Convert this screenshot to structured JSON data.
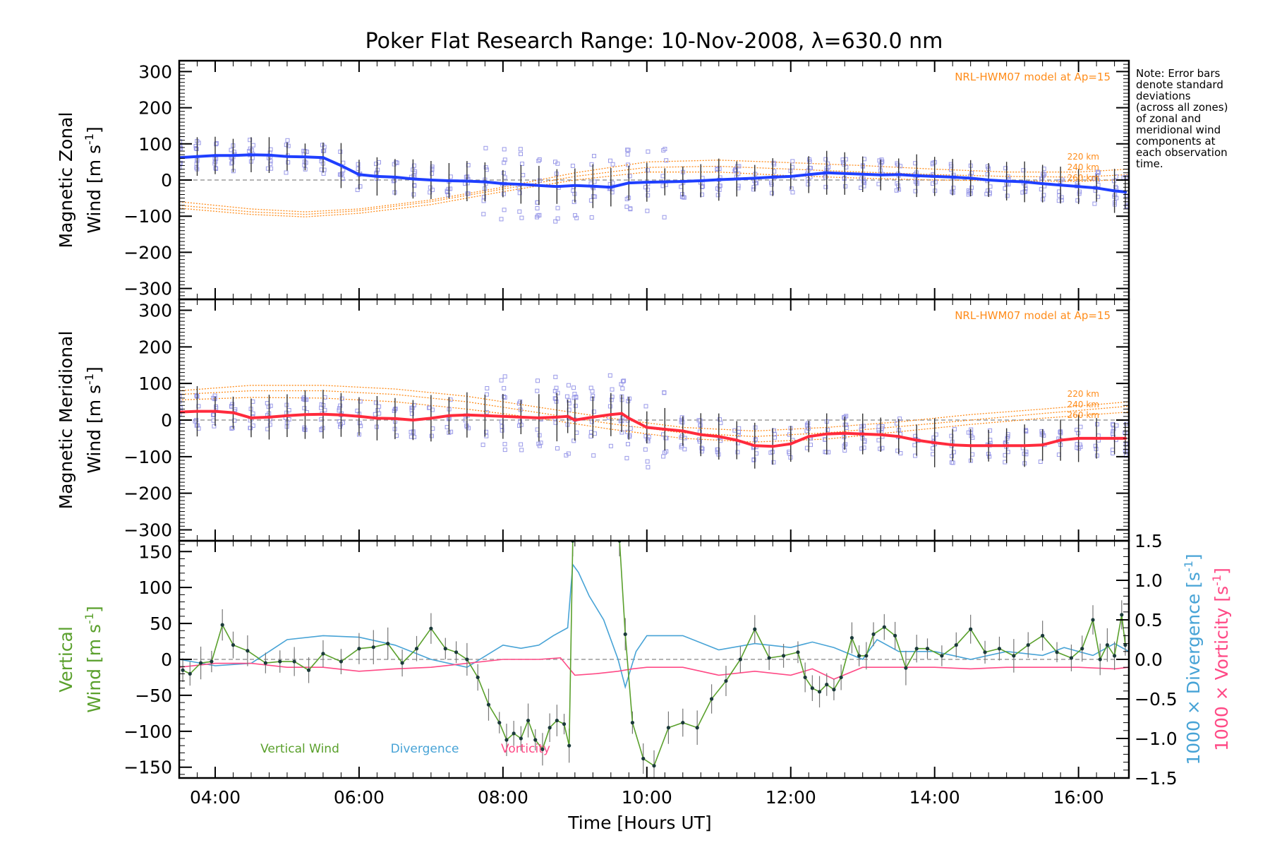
{
  "title": "Poker Flat Research Range: 10-Nov-2008, λ=630.0 nm",
  "note_lines": [
    "Note: Error bars",
    "denote standard",
    "deviations",
    "(across all zones)",
    "of zonal and",
    "meridional wind",
    "components at",
    "each observation",
    "time."
  ],
  "colors": {
    "zonal": "#1f3fff",
    "meridional": "#ff2a3c",
    "vertical": "#5aa02c",
    "divergence": "#47a3d6",
    "vorticity": "#ff4a86",
    "model": "#ff8c1a",
    "samples": "#9a9ae8",
    "errorbar": "#333333"
  },
  "chart_data": [
    {
      "type": "line",
      "panel": "zonal",
      "ylabel": "Magnetic Zonal",
      "ylabel2": "Wind [m s",
      "ylabel_sup": "-1",
      "ylabel_close": "]",
      "ylim": [
        -330,
        330
      ],
      "yticks": [
        300,
        200,
        100,
        0,
        -100,
        -200,
        -300
      ],
      "ytick_labels": [
        "300",
        "200",
        "100",
        "0",
        "−100",
        "−200",
        "−300"
      ],
      "xlim": [
        3.5,
        16.7
      ],
      "model_label": "NRL-HWM07 model at Ap=15",
      "model_altitude_labels": [
        "220 km",
        "240 km",
        "260 km"
      ],
      "series": [
        {
          "x": [
            3.5,
            3.75,
            4.0,
            4.25,
            4.5,
            4.75,
            5.0,
            5.25,
            5.5,
            5.75,
            6.0,
            6.25,
            6.5,
            6.75,
            7.0,
            7.25,
            7.5,
            7.75,
            8.0,
            8.25,
            8.5,
            8.75,
            9.0,
            9.25,
            9.5,
            9.75,
            10.0,
            10.25,
            10.5,
            10.75,
            11.0,
            11.25,
            11.5,
            11.75,
            12.0,
            12.25,
            12.5,
            12.75,
            13.0,
            13.25,
            13.5,
            13.75,
            14.0,
            14.25,
            14.5,
            14.75,
            15.0,
            15.25,
            15.5,
            15.75,
            16.0,
            16.25,
            16.5,
            16.65
          ],
          "y": [
            62,
            65,
            68,
            68,
            70,
            69,
            65,
            64,
            62,
            40,
            15,
            10,
            8,
            3,
            0,
            -2,
            -3,
            -5,
            -10,
            -12,
            -15,
            -18,
            -15,
            -17,
            -20,
            -8,
            -6,
            -5,
            -4,
            -2,
            1,
            3,
            5,
            8,
            10,
            15,
            20,
            18,
            16,
            14,
            15,
            12,
            10,
            8,
            5,
            0,
            -3,
            -5,
            -10,
            -14,
            -18,
            -22,
            -30,
            -33
          ]
        }
      ],
      "error_sd": 45,
      "model_220": [
        [
          3.5,
          -60
        ],
        [
          4.5,
          -80
        ],
        [
          5.25,
          -88
        ],
        [
          6.0,
          -80
        ],
        [
          7.0,
          -55
        ],
        [
          8.0,
          -20
        ],
        [
          9.0,
          20
        ],
        [
          10.0,
          50
        ],
        [
          11.0,
          55
        ],
        [
          12.0,
          48
        ],
        [
          13.0,
          40
        ],
        [
          14.0,
          30
        ],
        [
          15.0,
          22
        ],
        [
          16.0,
          22
        ],
        [
          16.7,
          30
        ]
      ],
      "model_240": [
        [
          3.5,
          -70
        ],
        [
          4.5,
          -88
        ],
        [
          5.25,
          -95
        ],
        [
          6.0,
          -85
        ],
        [
          7.0,
          -60
        ],
        [
          8.0,
          -25
        ],
        [
          9.0,
          10
        ],
        [
          10.0,
          35
        ],
        [
          11.0,
          38
        ],
        [
          12.0,
          30
        ],
        [
          13.0,
          22
        ],
        [
          14.0,
          15
        ],
        [
          15.0,
          10
        ],
        [
          16.0,
          8
        ],
        [
          16.7,
          15
        ]
      ],
      "model_260": [
        [
          3.5,
          -78
        ],
        [
          4.5,
          -95
        ],
        [
          5.25,
          -102
        ],
        [
          6.0,
          -92
        ],
        [
          7.0,
          -68
        ],
        [
          8.0,
          -32
        ],
        [
          9.0,
          0
        ],
        [
          10.0,
          22
        ],
        [
          11.0,
          22
        ],
        [
          12.0,
          12
        ],
        [
          13.0,
          5
        ],
        [
          14.0,
          0
        ],
        [
          15.0,
          -2
        ],
        [
          16.0,
          -4
        ],
        [
          16.7,
          2
        ]
      ]
    },
    {
      "type": "line",
      "panel": "meridional",
      "ylabel": "Magnetic Meridional",
      "ylabel2": "Wind [m s",
      "ylabel_sup": "-1",
      "ylabel_close": "]",
      "ylim": [
        -330,
        330
      ],
      "yticks": [
        300,
        200,
        100,
        0,
        -100,
        -200,
        -300
      ],
      "ytick_labels": [
        "300",
        "200",
        "100",
        "0",
        "−100",
        "−200",
        "−300"
      ],
      "xlim": [
        3.5,
        16.7
      ],
      "model_label": "NRL-HWM07 model at Ap=15",
      "model_altitude_labels": [
        "220 km",
        "240 km",
        "260 km"
      ],
      "series": [
        {
          "x": [
            3.5,
            3.75,
            4.0,
            4.25,
            4.5,
            4.75,
            5.0,
            5.25,
            5.5,
            5.75,
            6.0,
            6.25,
            6.5,
            6.75,
            7.0,
            7.25,
            7.5,
            7.75,
            8.0,
            8.25,
            8.5,
            8.75,
            8.9,
            9.0,
            9.25,
            9.5,
            9.65,
            9.75,
            10.0,
            10.25,
            10.5,
            10.75,
            11.0,
            11.25,
            11.5,
            11.75,
            12.0,
            12.25,
            12.5,
            12.75,
            13.0,
            13.25,
            13.5,
            13.75,
            14.0,
            14.25,
            14.5,
            14.75,
            15.0,
            15.25,
            15.5,
            15.75,
            16.0,
            16.25,
            16.5,
            16.65
          ],
          "y": [
            22,
            24,
            24,
            20,
            6,
            8,
            12,
            15,
            16,
            14,
            10,
            5,
            4,
            0,
            5,
            12,
            14,
            12,
            10,
            8,
            6,
            8,
            10,
            0,
            8,
            15,
            18,
            5,
            -20,
            -25,
            -30,
            -40,
            -45,
            -55,
            -70,
            -72,
            -65,
            -45,
            -38,
            -36,
            -38,
            -40,
            -45,
            -55,
            -62,
            -68,
            -70,
            -70,
            -70,
            -70,
            -68,
            -55,
            -50,
            -50,
            -50,
            -50
          ]
        }
      ],
      "error_sd": 50,
      "model_220": [
        [
          3.5,
          80
        ],
        [
          4.5,
          95
        ],
        [
          5.5,
          95
        ],
        [
          6.5,
          85
        ],
        [
          7.5,
          65
        ],
        [
          8.5,
          35
        ],
        [
          9.5,
          5
        ],
        [
          10.5,
          -20
        ],
        [
          11.5,
          -30
        ],
        [
          12.5,
          -20
        ],
        [
          13.5,
          -5
        ],
        [
          14.5,
          15
        ],
        [
          15.5,
          30
        ],
        [
          16.7,
          50
        ]
      ],
      "model_240": [
        [
          3.5,
          70
        ],
        [
          4.5,
          80
        ],
        [
          5.5,
          80
        ],
        [
          6.5,
          70
        ],
        [
          7.5,
          50
        ],
        [
          8.5,
          20
        ],
        [
          9.5,
          -10
        ],
        [
          10.5,
          -35
        ],
        [
          11.5,
          -45
        ],
        [
          12.5,
          -35
        ],
        [
          13.5,
          -18
        ],
        [
          14.5,
          0
        ],
        [
          15.5,
          18
        ],
        [
          16.7,
          38
        ]
      ],
      "model_260": [
        [
          3.5,
          55
        ],
        [
          4.5,
          62
        ],
        [
          5.5,
          60
        ],
        [
          6.5,
          50
        ],
        [
          7.5,
          30
        ],
        [
          8.5,
          5
        ],
        [
          9.5,
          -25
        ],
        [
          10.5,
          -50
        ],
        [
          11.5,
          -60
        ],
        [
          12.5,
          -52
        ],
        [
          13.5,
          -32
        ],
        [
          14.5,
          -12
        ],
        [
          15.5,
          5
        ],
        [
          16.7,
          22
        ]
      ]
    },
    {
      "type": "line",
      "panel": "vertical",
      "ylabel": "Vertical",
      "ylabel2": "Wind [m s",
      "ylabel_sup": "-1",
      "ylabel_close": "]",
      "ylim": [
        -165,
        165
      ],
      "yticks": [
        150,
        100,
        50,
        0,
        -50,
        -100,
        -150
      ],
      "ytick_labels": [
        "150",
        "100",
        "50",
        "0",
        "−50",
        "−100",
        "−150"
      ],
      "y2lim": [
        -1.5,
        1.5
      ],
      "y2ticks": [
        1.5,
        1.0,
        0.5,
        0.0,
        -0.5,
        -1.0,
        -1.5
      ],
      "y2tick_labels": [
        "1.5",
        "1.0",
        "0.5",
        "0.0",
        "−0.5",
        "−1.0",
        "−1.5"
      ],
      "y2label_div": "1000 × Divergence [s",
      "y2label_vor": "1000 × Vorticity [s",
      "xlim": [
        3.5,
        16.7
      ],
      "xticks": [
        4,
        6,
        8,
        10,
        12,
        14,
        16
      ],
      "xtick_labels": [
        "04:00",
        "06:00",
        "08:00",
        "10:00",
        "12:00",
        "14:00",
        "16:00"
      ],
      "xlabel": "Time [Hours UT]",
      "legend": [
        "Vertical Wind",
        "Divergence",
        "Vorticity"
      ],
      "series": [
        {
          "name": "Vertical Wind",
          "x": [
            3.55,
            3.65,
            3.8,
            3.95,
            4.1,
            4.25,
            4.45,
            4.7,
            4.9,
            5.1,
            5.3,
            5.5,
            5.75,
            6.0,
            6.2,
            6.4,
            6.6,
            6.8,
            7.0,
            7.2,
            7.35,
            7.5,
            7.65,
            7.8,
            7.95,
            8.05,
            8.15,
            8.25,
            8.35,
            8.45,
            8.55,
            8.65,
            8.75,
            8.85,
            8.92,
            8.97,
            9.62,
            9.7,
            9.8,
            9.95,
            10.1,
            10.3,
            10.5,
            10.7,
            10.9,
            11.1,
            11.3,
            11.5,
            11.7,
            11.9,
            12.1,
            12.2,
            12.3,
            12.4,
            12.5,
            12.6,
            12.7,
            12.85,
            12.95,
            13.05,
            13.15,
            13.3,
            13.45,
            13.6,
            13.75,
            13.9,
            14.1,
            14.3,
            14.5,
            14.7,
            14.9,
            15.1,
            15.3,
            15.5,
            15.7,
            15.9,
            16.05,
            16.2,
            16.3,
            16.4,
            16.5,
            16.6,
            16.65
          ],
          "y": [
            -15,
            -20,
            -5,
            -3,
            48,
            20,
            12,
            -5,
            -3,
            -3,
            -15,
            8,
            -3,
            15,
            17,
            22,
            -5,
            15,
            43,
            15,
            10,
            0,
            -25,
            -63,
            -88,
            -112,
            -103,
            -110,
            -85,
            -112,
            -125,
            -95,
            -85,
            -90,
            -120,
            165,
            165,
            35,
            -88,
            -138,
            -148,
            -95,
            -88,
            -95,
            -55,
            -30,
            0,
            42,
            2,
            5,
            10,
            -25,
            -40,
            -45,
            -35,
            -42,
            -25,
            30,
            5,
            5,
            35,
            45,
            33,
            -12,
            15,
            15,
            5,
            20,
            42,
            10,
            15,
            5,
            20,
            33,
            10,
            2,
            15,
            55,
            0,
            20,
            5,
            62,
            20
          ]
        },
        {
          "name": "Divergence",
          "x": [
            3.5,
            4.0,
            4.5,
            5.0,
            5.5,
            6.0,
            6.5,
            7.0,
            7.5,
            8.0,
            8.25,
            8.5,
            8.7,
            8.9,
            8.97,
            9.05,
            9.2,
            9.4,
            9.6,
            9.7,
            9.85,
            10.0,
            10.5,
            11.0,
            11.5,
            12.0,
            12.3,
            12.6,
            13.0,
            13.2,
            13.5,
            14.0,
            14.5,
            15.0,
            15.5,
            15.8,
            16.0,
            16.2,
            16.5,
            16.7
          ],
          "y": [
            0.0,
            -0.08,
            -0.05,
            0.25,
            0.3,
            0.28,
            0.18,
            0.0,
            -0.1,
            0.18,
            0.14,
            0.18,
            0.3,
            0.4,
            1.2,
            1.1,
            0.8,
            0.5,
            0.0,
            -0.35,
            0.1,
            0.3,
            0.3,
            0.12,
            0.2,
            0.15,
            0.22,
            0.15,
            0.0,
            0.25,
            0.1,
            0.1,
            0.0,
            0.1,
            0.05,
            0.15,
            0.1,
            0.05,
            0.2,
            0.1
          ]
        },
        {
          "name": "Vorticity",
          "x": [
            3.5,
            4.0,
            4.5,
            5.0,
            5.5,
            6.0,
            6.5,
            7.0,
            7.5,
            8.0,
            8.5,
            8.8,
            9.0,
            9.3,
            9.6,
            9.8,
            10.0,
            10.5,
            11.0,
            11.5,
            12.0,
            12.3,
            12.6,
            13.0,
            13.5,
            14.0,
            14.5,
            15.0,
            15.5,
            16.0,
            16.5,
            16.7
          ],
          "y": [
            -0.1,
            -0.05,
            -0.05,
            -0.1,
            -0.1,
            -0.15,
            -0.12,
            -0.1,
            -0.05,
            0.0,
            0.0,
            0.02,
            -0.2,
            -0.18,
            -0.15,
            -0.12,
            -0.1,
            -0.1,
            -0.2,
            -0.15,
            -0.2,
            -0.12,
            -0.25,
            -0.1,
            -0.1,
            -0.1,
            -0.12,
            -0.1,
            -0.1,
            -0.1,
            -0.12,
            -0.1
          ]
        }
      ]
    }
  ]
}
